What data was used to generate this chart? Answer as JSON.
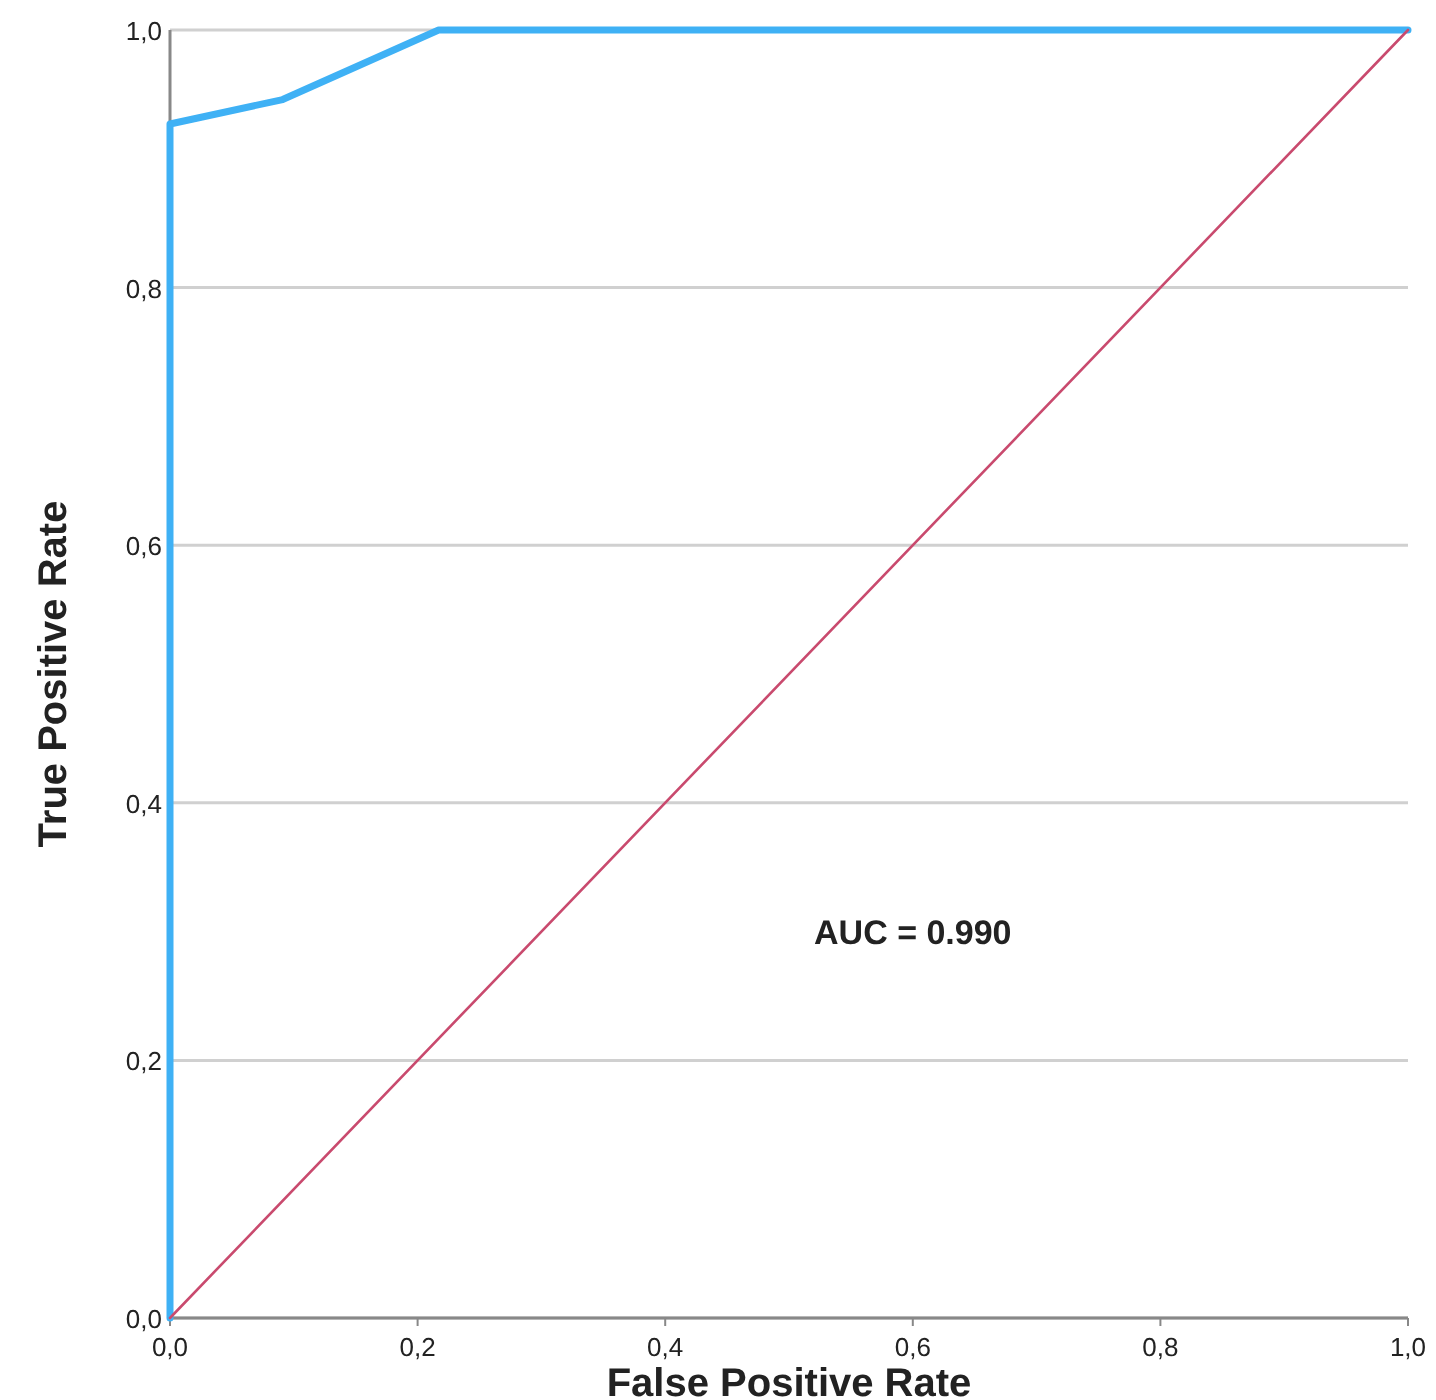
{
  "chart_data": {
    "type": "line",
    "xlabel": "False Positive Rate",
    "ylabel": "True Positive Rate",
    "xlim": [
      0,
      1
    ],
    "ylim": [
      0,
      1
    ],
    "xticks": [
      {
        "value": 0,
        "label": "0,0"
      },
      {
        "value": 0.2,
        "label": "0,2"
      },
      {
        "value": 0.4,
        "label": "0,4"
      },
      {
        "value": 0.6,
        "label": "0,6"
      },
      {
        "value": 0.8,
        "label": "0,8"
      },
      {
        "value": 1,
        "label": "1,0"
      }
    ],
    "yticks": [
      {
        "value": 0,
        "label": "0,0"
      },
      {
        "value": 0.2,
        "label": "0,2"
      },
      {
        "value": 0.4,
        "label": "0,4"
      },
      {
        "value": 0.6,
        "label": "0,6"
      },
      {
        "value": 0.8,
        "label": "0,8"
      },
      {
        "value": 1,
        "label": "1,0"
      }
    ],
    "grid": "y",
    "marker": "none",
    "line_style": "solid",
    "series": [
      {
        "color": "#3fb1f5",
        "x": [
          0,
          0,
          0.091,
          0.217,
          1
        ],
        "values": [
          0,
          0.927,
          0.946,
          1,
          1
        ]
      },
      {
        "color": "#c94a6e",
        "x": [
          0,
          1
        ],
        "values": [
          0,
          1
        ]
      }
    ],
    "annotations": [
      "AUC = 0.990"
    ]
  }
}
